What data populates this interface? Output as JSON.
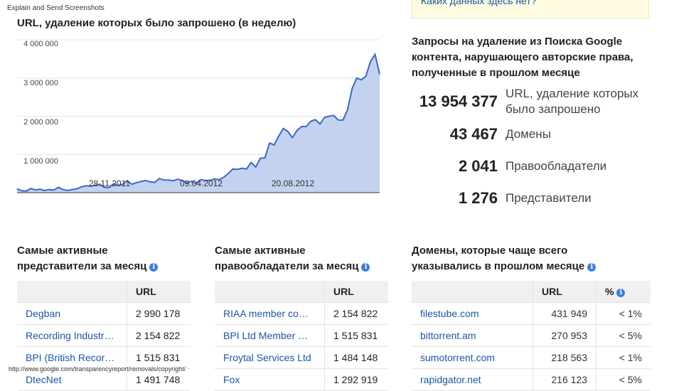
{
  "header": {
    "top_note": "Explain and Send Screenshots",
    "footer_url": "http://www.google.com/transparencyreport/removals/copyright/"
  },
  "notice": {
    "link": "Каких данных здесь нет?"
  },
  "chart": {
    "title": "URL, удаление которых было запрошено (в неделю)",
    "y_ticks": [
      "4 000 000",
      "3 000 000",
      "2 000 000",
      "1 000 000"
    ],
    "x_labels": [
      "28.11.2011",
      "09.04.2012",
      "20.08.2012"
    ]
  },
  "chart_data": {
    "type": "area",
    "title": "URL, удаление которых было запрошено (в неделю)",
    "x_tick_labels": [
      "28.11.2011",
      "09.04.2012",
      "20.08.2012"
    ],
    "ylim": [
      0,
      4000000
    ],
    "y_ticks": [
      1000000,
      2000000,
      3000000,
      4000000
    ],
    "grid": true,
    "color": "#3a68c8",
    "fill": "#c3d2ee",
    "values": [
      100000,
      50000,
      40000,
      110000,
      70000,
      90000,
      60000,
      80000,
      70000,
      140000,
      80000,
      60000,
      80000,
      100000,
      150000,
      180000,
      170000,
      190000,
      220000,
      140000,
      130000,
      230000,
      190000,
      220000,
      310000,
      220000,
      260000,
      290000,
      320000,
      280000,
      270000,
      370000,
      330000,
      330000,
      310000,
      350000,
      320000,
      260000,
      300000,
      240000,
      340000,
      320000,
      320000,
      360000,
      340000,
      400000,
      500000,
      620000,
      610000,
      640000,
      620000,
      790000,
      670000,
      900000,
      910000,
      1300000,
      1250000,
      1480000,
      1680000,
      1600000,
      1440000,
      1630000,
      1730000,
      1730000,
      1870000,
      1910000,
      1800000,
      1970000,
      2000000,
      2020000,
      1900000,
      1900000,
      2170000,
      2730000,
      3000000,
      2950000,
      3050000,
      3430000,
      3620000,
      3100000
    ]
  },
  "stats": {
    "title": "Запросы на удаление из Поиска Google контента, нарушающего авторские права, полученные в прошлом месяце",
    "items": [
      {
        "value": "13 954 377",
        "label": "URL, удаление которых было запрошено"
      },
      {
        "value": "43 467",
        "label": "Домены"
      },
      {
        "value": "2 041",
        "label": "Правообладатели"
      },
      {
        "value": "1 276",
        "label": "Представители"
      }
    ]
  },
  "reporters": {
    "title": "Самые активные представители за месяц",
    "col": "URL",
    "rows": [
      {
        "name": "Degban",
        "urls": "2 990 178"
      },
      {
        "name": "Recording Industr…",
        "urls": "2 154 822"
      },
      {
        "name": "BPI (British Recor…",
        "urls": "1 515 831"
      },
      {
        "name": "DtecNet",
        "urls": "1 491 748"
      }
    ]
  },
  "owners": {
    "title": "Самые активные правообладатели за месяц",
    "col": "URL",
    "rows": [
      {
        "name": "RIAA member co…",
        "urls": "2 154 822"
      },
      {
        "name": "BPI Ltd Member …",
        "urls": "1 515 831"
      },
      {
        "name": "Froytal Services Ltd",
        "urls": "1 484 148"
      },
      {
        "name": "Fox",
        "urls": "1 292 919"
      }
    ]
  },
  "domains": {
    "title": "Домены, которые чаще всего указывались в прошлом месяце",
    "col_urls": "URL",
    "col_pct": "%",
    "rows": [
      {
        "name": "filestube.com",
        "urls": "431 949",
        "pct": "< 1%"
      },
      {
        "name": "bittorrent.am",
        "urls": "270 953",
        "pct": "< 5%"
      },
      {
        "name": "sumotorrent.com",
        "urls": "218 563",
        "pct": "< 1%"
      },
      {
        "name": "rapidgator.net",
        "urls": "216 123",
        "pct": "< 5%"
      }
    ]
  }
}
